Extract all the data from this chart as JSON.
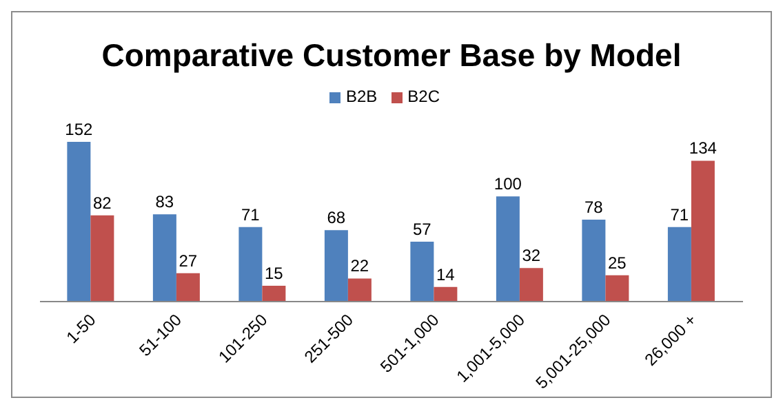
{
  "chart_data": {
    "type": "bar",
    "title": "Comparative Customer Base by Model",
    "categories": [
      "1-50",
      "51-100",
      "101-250",
      "251-500",
      "501-1,000",
      "1,001-5,000",
      "5,001-25,000",
      "26,000 +"
    ],
    "series": [
      {
        "name": "B2B",
        "color": "#4f81bd",
        "values": [
          152,
          83,
          71,
          68,
          57,
          100,
          78,
          71
        ]
      },
      {
        "name": "B2C",
        "color": "#c0504d",
        "values": [
          82,
          27,
          15,
          22,
          14,
          32,
          25,
          134
        ]
      }
    ],
    "data_labels": true,
    "legend": "top"
  }
}
